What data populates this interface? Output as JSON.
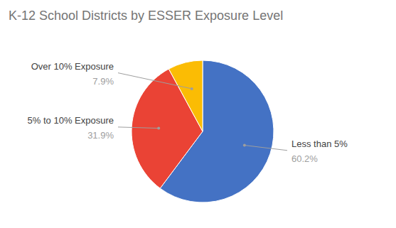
{
  "chart_data": {
    "type": "pie",
    "title": "K-12 School Districts by ESSER Exposure Level",
    "categories": [
      "Less than 5%",
      "5% to 10% Exposure",
      "Over 10% Exposure"
    ],
    "values": [
      60.2,
      31.9,
      7.9
    ],
    "value_labels": [
      "60.2%",
      "31.9%",
      "7.9%"
    ],
    "colors": [
      "#4472C4",
      "#EA4335",
      "#FBBC04"
    ],
    "data_labels": true
  }
}
